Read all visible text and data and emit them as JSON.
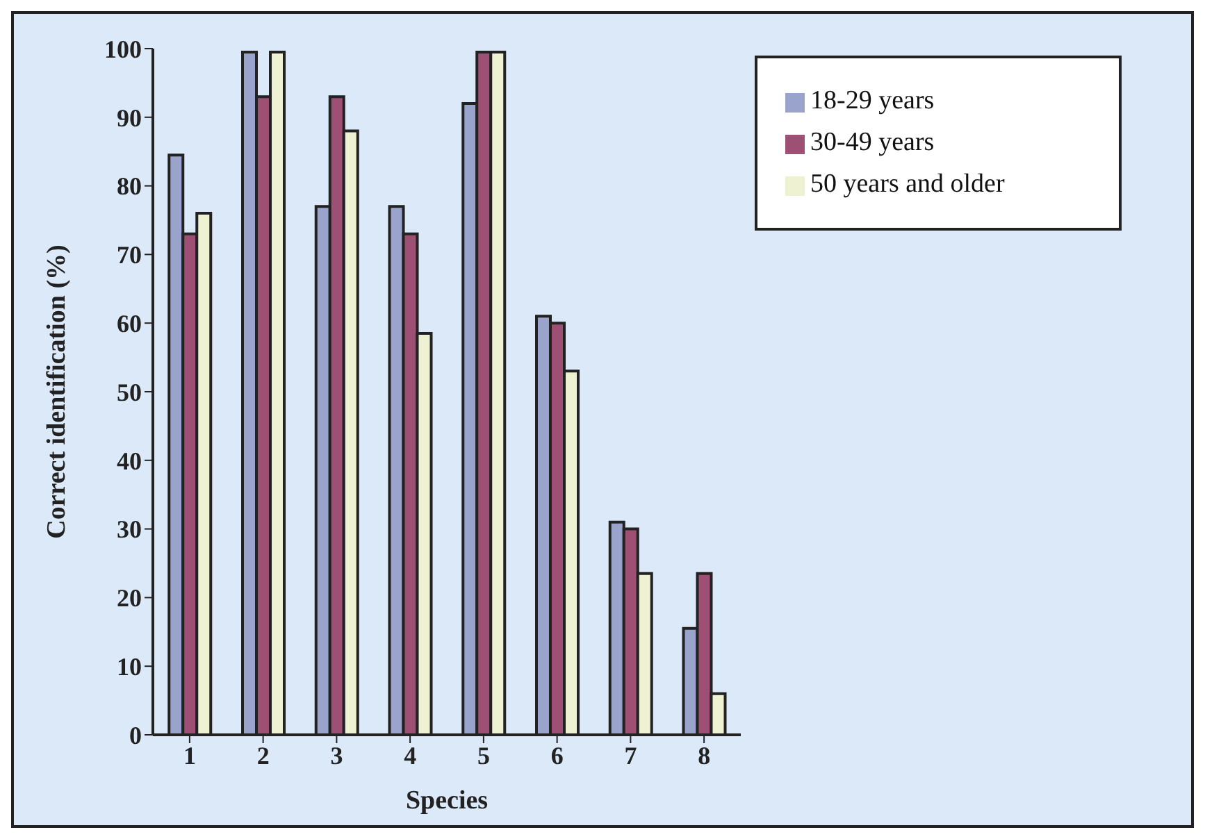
{
  "chart_data": {
    "type": "bar",
    "xlabel": "Species",
    "ylabel": "Correct identification (%)",
    "categories": [
      "1",
      "2",
      "3",
      "4",
      "5",
      "6",
      "7",
      "8"
    ],
    "series": [
      {
        "name": "18-29 years",
        "color": "#99a3cc",
        "values": [
          84.5,
          99.5,
          77,
          77,
          92,
          61,
          31,
          15.5
        ]
      },
      {
        "name": "30-49 years",
        "color": "#9e5074",
        "values": [
          73,
          93,
          93,
          73,
          99.5,
          60,
          30,
          23.5
        ]
      },
      {
        "name": "50 years and older",
        "color": "#eff2d2",
        "values": [
          76,
          99.5,
          88,
          58.5,
          99.5,
          53,
          23.5,
          6
        ]
      }
    ],
    "ylim": [
      0,
      100
    ],
    "yticks": [
      0,
      10,
      20,
      30,
      40,
      50,
      60,
      70,
      80,
      90,
      100
    ],
    "grid": false,
    "legend": "top right"
  }
}
